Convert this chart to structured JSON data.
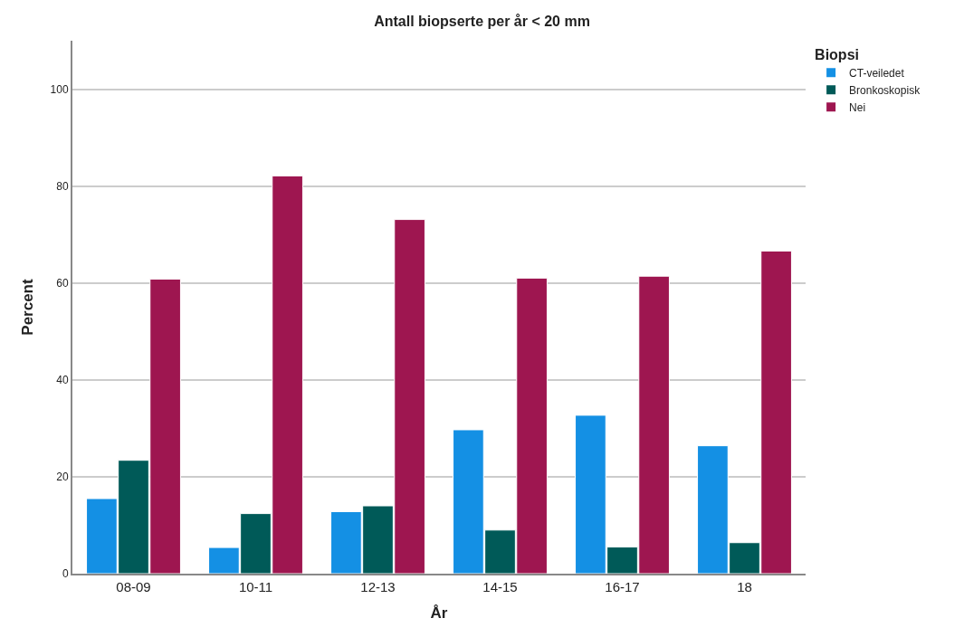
{
  "chart_data": {
    "type": "bar",
    "title": "Antall biopserte per år < 20 mm",
    "xlabel": "År",
    "ylabel": "Percent",
    "legend_title": "Biopsi",
    "categories": [
      "08-09",
      "10-11",
      "12-13",
      "14-15",
      "16-17",
      "18"
    ],
    "series": [
      {
        "name": "CT-veiledet",
        "color": "#1490e4",
        "values": [
          15.5,
          5.4,
          12.8,
          29.7,
          32.7,
          26.4
        ]
      },
      {
        "name": "Bronkoskopisk",
        "color": "#005a58",
        "values": [
          23.4,
          12.4,
          14.0,
          9.0,
          5.5,
          6.4
        ]
      },
      {
        "name": "Nei",
        "color": "#9e1650",
        "values": [
          60.8,
          82.1,
          73.1,
          61.0,
          61.4,
          66.6
        ]
      }
    ],
    "ylim": [
      0,
      110
    ],
    "yticks": [
      0,
      20,
      40,
      60,
      80,
      100
    ],
    "grid": "y",
    "legend": "top right"
  }
}
